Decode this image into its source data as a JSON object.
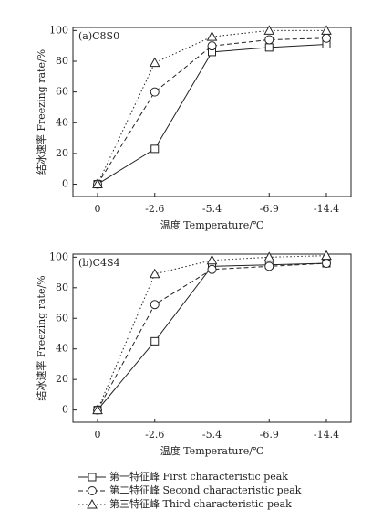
{
  "chart_data": [
    {
      "type": "line",
      "title": "(a)C8S0",
      "xlabel": "温度 Temperature/℃",
      "ylabel": "结冰速率 Freezing rate/%",
      "categories": [
        "0",
        "-2.6",
        "-5.4",
        "-6.9",
        "-14.4"
      ],
      "ylim": [
        -8,
        102
      ],
      "yticks": [
        0,
        20,
        40,
        60,
        80,
        100
      ],
      "series": [
        {
          "name": "第一特征峰 First characteristic peak",
          "color": "#222222",
          "marker": "square",
          "dash": "solid",
          "values": [
            0,
            23,
            86,
            89,
            91
          ]
        },
        {
          "name": "第二特征峰 Second characteristic peak",
          "color": "#222222",
          "marker": "circle",
          "dash": "dashed",
          "values": [
            0,
            60,
            90,
            94,
            95
          ]
        },
        {
          "name": "第三特征峰 Third characteristic peak",
          "color": "#222222",
          "marker": "triangle",
          "dash": "dotted",
          "values": [
            0,
            79,
            96,
            100,
            100
          ]
        }
      ]
    },
    {
      "type": "line",
      "title": "(b)C4S4",
      "xlabel": "温度 Temperature/℃",
      "ylabel": "结冰速率 Freezing rate/%",
      "categories": [
        "0",
        "-2.6",
        "-5.4",
        "-6.9",
        "-14.4"
      ],
      "ylim": [
        -8,
        102
      ],
      "yticks": [
        0,
        20,
        40,
        60,
        80,
        100
      ],
      "series": [
        {
          "color": "#222222",
          "marker": "square",
          "dash": "solid",
          "values": [
            0,
            45,
            94,
            95,
            96
          ]
        },
        {
          "color": "#222222",
          "marker": "circle",
          "dash": "dashed",
          "values": [
            0,
            69,
            92,
            94,
            96
          ]
        },
        {
          "color": "#222222",
          "marker": "triangle",
          "dash": "dotted",
          "values": [
            0,
            89,
            98,
            100,
            101
          ]
        }
      ]
    }
  ]
}
